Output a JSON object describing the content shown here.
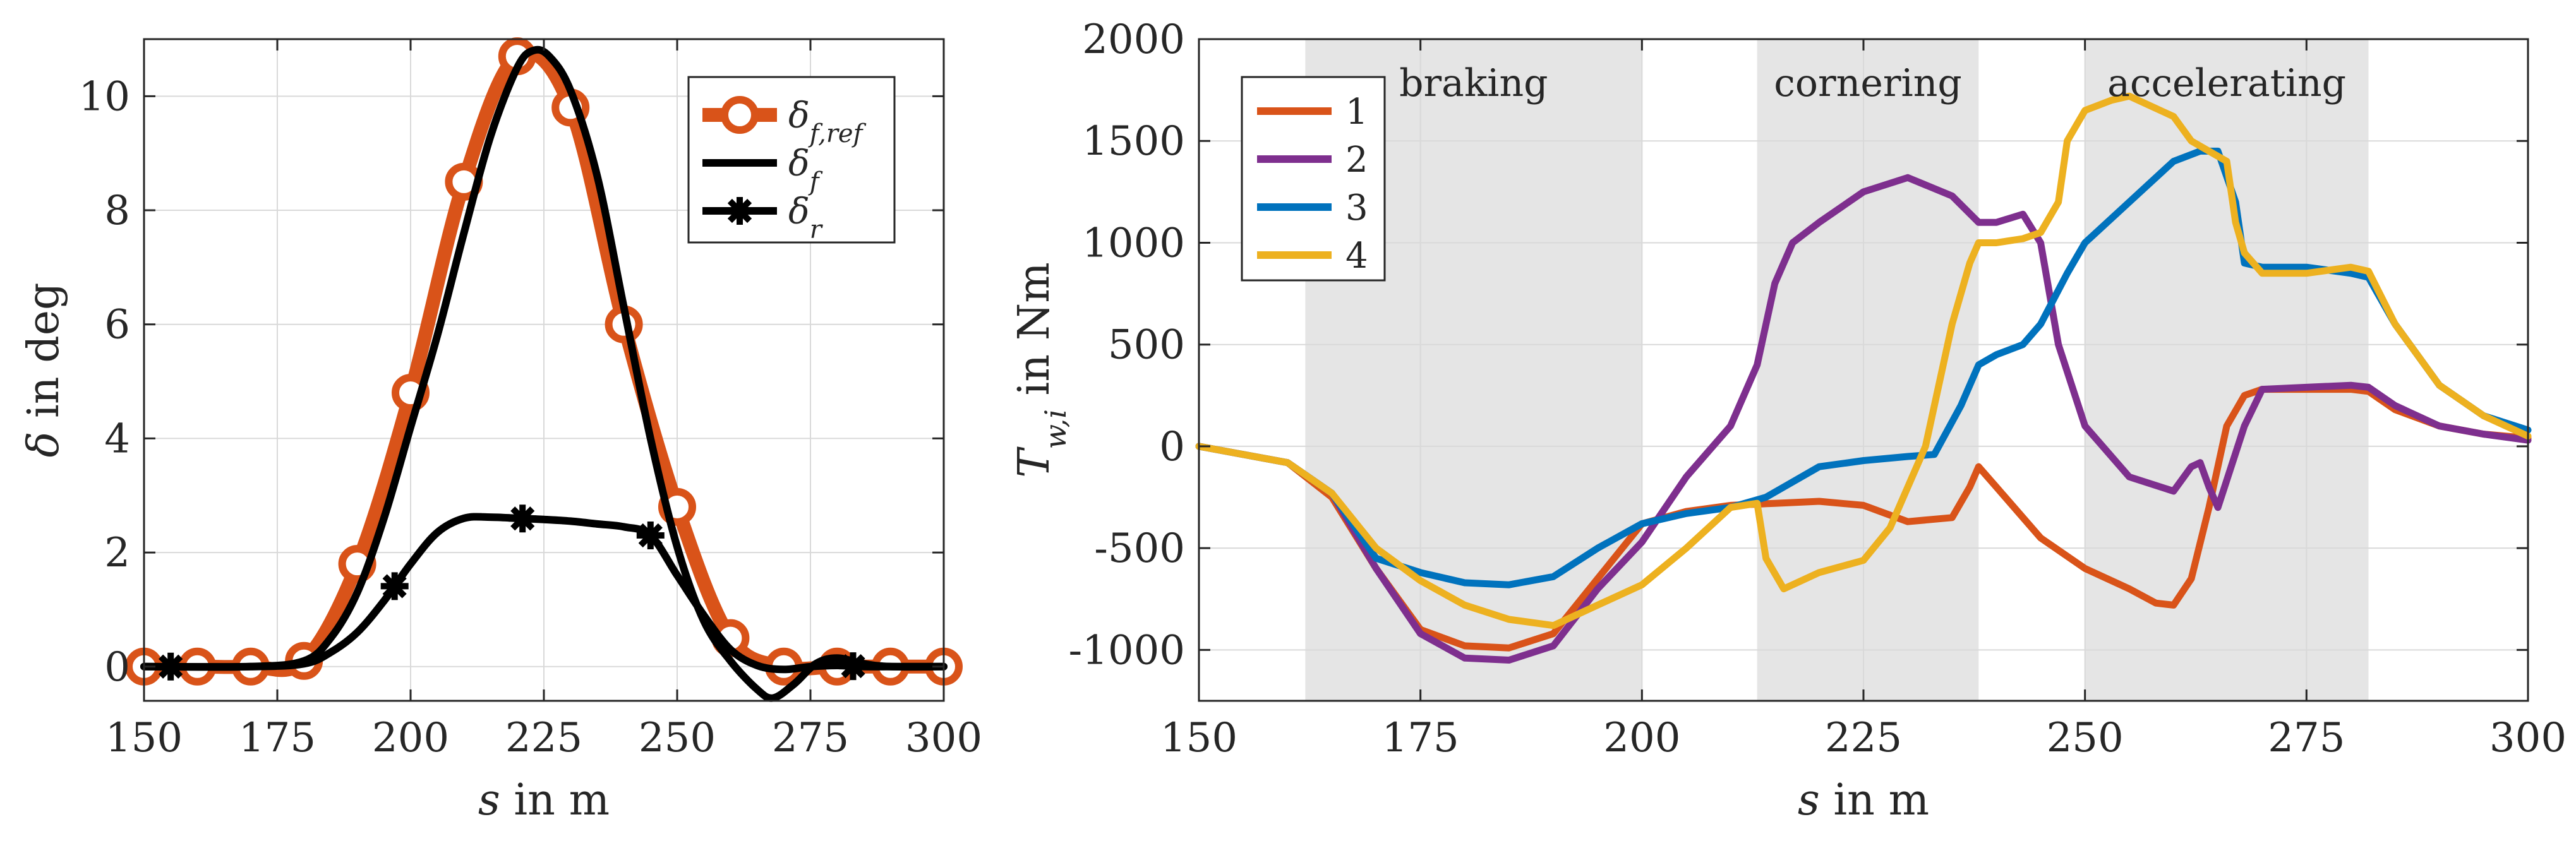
{
  "chart_data": [
    {
      "type": "line",
      "xlabel_var": "s",
      "xlabel_text": " in m",
      "ylabel_var": "δ",
      "ylabel_text": " in deg",
      "xlim": [
        150,
        300
      ],
      "ylim": [
        -0.6,
        11
      ],
      "x_ticks": [
        150,
        175,
        200,
        225,
        250,
        275,
        300
      ],
      "x_tick_labels": [
        "150",
        "175",
        "200",
        "225",
        "250",
        "275",
        "300"
      ],
      "y_ticks": [
        0,
        2,
        4,
        6,
        8,
        10
      ],
      "y_tick_labels": [
        "0",
        "2",
        "4",
        "6",
        "8",
        "10"
      ],
      "grid": true,
      "legend_position": "top-right",
      "series": [
        {
          "name": "δ_f,ref",
          "legend_main": "δ",
          "legend_sub": "f,ref",
          "color": "#D95319",
          "style": "line-with-circles",
          "x": [
            150,
            160,
            170,
            180,
            190,
            200,
            210,
            220,
            230,
            240,
            250,
            260,
            270,
            280,
            290,
            300
          ],
          "y": [
            0,
            0,
            0,
            0.1,
            1.8,
            4.8,
            8.5,
            10.7,
            9.8,
            6.0,
            2.8,
            0.5,
            0,
            0,
            0,
            0
          ],
          "marker_x": [
            150,
            160,
            170,
            180,
            190,
            200,
            210,
            220,
            230,
            240,
            250,
            260,
            270,
            280,
            290,
            300
          ]
        },
        {
          "name": "δ_f",
          "legend_main": "δ",
          "legend_sub": "f",
          "color": "#000000",
          "style": "line",
          "x": [
            150,
            170,
            180,
            185,
            190,
            195,
            200,
            205,
            210,
            215,
            220,
            223,
            226,
            230,
            235,
            240,
            245,
            250,
            255,
            260,
            265,
            268,
            272,
            276,
            280,
            285,
            290,
            300
          ],
          "y": [
            0,
            0,
            0.1,
            0.5,
            1.3,
            2.6,
            4.2,
            5.8,
            7.6,
            9.3,
            10.5,
            10.8,
            10.7,
            10.1,
            8.6,
            6.3,
            4.0,
            2.1,
            0.8,
            0.1,
            -0.4,
            -0.55,
            -0.3,
            0.05,
            0.15,
            0.05,
            0,
            0
          ]
        },
        {
          "name": "δ_r",
          "legend_main": "δ",
          "legend_sub": "r",
          "color": "#000000",
          "style": "line-with-stars",
          "x": [
            150,
            170,
            180,
            185,
            190,
            195,
            200,
            205,
            210,
            215,
            220,
            225,
            230,
            235,
            240,
            245,
            250,
            255,
            260,
            265,
            270,
            275,
            280,
            285,
            290,
            300
          ],
          "y": [
            0,
            0,
            0.05,
            0.25,
            0.6,
            1.15,
            1.8,
            2.35,
            2.6,
            2.62,
            2.6,
            2.58,
            2.55,
            2.5,
            2.45,
            2.3,
            1.6,
            0.9,
            0.3,
            0.02,
            -0.05,
            0,
            0.02,
            0,
            0,
            0
          ],
          "marker_x": [
            155,
            197,
            221,
            245,
            283
          ]
        }
      ]
    },
    {
      "type": "line",
      "xlabel_var": "s",
      "xlabel_text": " in m",
      "ylabel_var": "T",
      "ylabel_sub": "w,i",
      "ylabel_text": " in Nm",
      "xlim": [
        150,
        300
      ],
      "ylim": [
        -1250,
        2000
      ],
      "x_ticks": [
        150,
        175,
        200,
        225,
        250,
        275,
        300
      ],
      "x_tick_labels": [
        "150",
        "175",
        "200",
        "225",
        "250",
        "275",
        "300"
      ],
      "y_ticks": [
        -1000,
        -500,
        0,
        500,
        1000,
        1500,
        2000
      ],
      "y_tick_labels": [
        "-1000",
        "-500",
        "0",
        "500",
        "1000",
        "1500",
        "2000"
      ],
      "grid": true,
      "legend_position": "top-left",
      "annotations": [
        {
          "text": "braking",
          "x_start": 162,
          "x_end": 200
        },
        {
          "text": "cornering",
          "x_start": 213,
          "x_end": 238
        },
        {
          "text": "accelerating",
          "x_start": 250,
          "x_end": 282
        }
      ],
      "shade_color": "#e5e5e5",
      "series": [
        {
          "name": "1",
          "color": "#D95319",
          "x": [
            150,
            160,
            165,
            170,
            175,
            180,
            185,
            190,
            195,
            200,
            205,
            210,
            215,
            220,
            225,
            230,
            235,
            237,
            238,
            240,
            245,
            250,
            255,
            258,
            260,
            262,
            264,
            266,
            268,
            270,
            275,
            280,
            282,
            285,
            290,
            295,
            300
          ],
          "y": [
            0,
            -80,
            -250,
            -600,
            -900,
            -980,
            -990,
            -920,
            -650,
            -380,
            -320,
            -290,
            -280,
            -270,
            -290,
            -370,
            -350,
            -200,
            -100,
            -200,
            -450,
            -600,
            -700,
            -770,
            -780,
            -650,
            -300,
            100,
            250,
            280,
            280,
            280,
            270,
            180,
            100,
            60,
            40
          ]
        },
        {
          "name": "2",
          "color": "#7E2F8E",
          "x": [
            150,
            160,
            165,
            170,
            175,
            180,
            185,
            190,
            195,
            200,
            205,
            210,
            213,
            215,
            217,
            220,
            225,
            230,
            235,
            238,
            240,
            243,
            245,
            247,
            250,
            255,
            260,
            262,
            263,
            264,
            265,
            268,
            270,
            275,
            280,
            282,
            285,
            290,
            295,
            300
          ],
          "y": [
            0,
            -80,
            -230,
            -600,
            -920,
            -1040,
            -1050,
            -980,
            -700,
            -470,
            -150,
            100,
            400,
            800,
            1000,
            1100,
            1250,
            1320,
            1230,
            1100,
            1100,
            1140,
            1000,
            500,
            100,
            -150,
            -220,
            -100,
            -80,
            -200,
            -300,
            100,
            280,
            290,
            300,
            290,
            200,
            100,
            60,
            30
          ]
        },
        {
          "name": "3",
          "color": "#0072BD",
          "x": [
            150,
            160,
            165,
            170,
            175,
            180,
            185,
            190,
            195,
            200,
            205,
            210,
            214,
            216,
            220,
            225,
            230,
            233,
            236,
            238,
            240,
            243,
            245,
            248,
            250,
            255,
            260,
            263,
            265,
            267,
            268,
            270,
            275,
            280,
            282,
            285,
            290,
            295,
            300
          ],
          "y": [
            0,
            -80,
            -230,
            -550,
            -620,
            -670,
            -680,
            -640,
            -500,
            -380,
            -330,
            -300,
            -250,
            -200,
            -100,
            -70,
            -50,
            -40,
            200,
            400,
            450,
            500,
            600,
            850,
            1000,
            1200,
            1400,
            1450,
            1450,
            1200,
            900,
            880,
            880,
            850,
            830,
            600,
            300,
            150,
            80
          ]
        },
        {
          "name": "4",
          "color": "#EDB120",
          "x": [
            150,
            160,
            165,
            170,
            175,
            180,
            185,
            190,
            195,
            200,
            205,
            210,
            213,
            214,
            216,
            220,
            225,
            228,
            232,
            235,
            237,
            238,
            240,
            243,
            245,
            247,
            248,
            250,
            253,
            255,
            260,
            262,
            264,
            266,
            267,
            268,
            270,
            275,
            280,
            282,
            285,
            290,
            295,
            300
          ],
          "y": [
            0,
            -80,
            -230,
            -500,
            -660,
            -780,
            -850,
            -880,
            -780,
            -680,
            -500,
            -300,
            -280,
            -550,
            -700,
            -620,
            -560,
            -400,
            0,
            600,
            900,
            1000,
            1000,
            1020,
            1050,
            1200,
            1500,
            1650,
            1700,
            1720,
            1620,
            1500,
            1450,
            1400,
            1100,
            950,
            850,
            850,
            880,
            860,
            600,
            300,
            150,
            50
          ]
        }
      ]
    }
  ]
}
